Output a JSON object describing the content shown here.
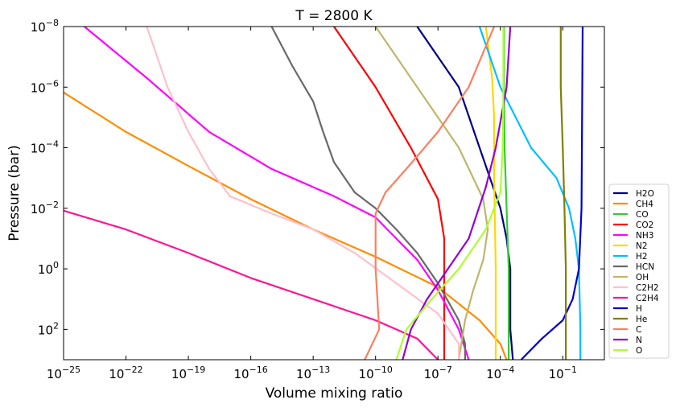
{
  "chart_data": {
    "type": "line",
    "title": "T = 2800 K",
    "xlabel": "Volume mixing ratio",
    "ylabel": "Pressure (bar)",
    "x_scale": "log",
    "y_scale": "log",
    "y_inverted": true,
    "xlim": [
      1e-25,
      10
    ],
    "ylim": [
      1000,
      1e-08
    ],
    "x_ticks": [
      {
        "value": 1e-25,
        "base": "10",
        "exp": "−25"
      },
      {
        "value": 1e-22,
        "base": "10",
        "exp": "−22"
      },
      {
        "value": 1e-19,
        "base": "10",
        "exp": "−19"
      },
      {
        "value": 1e-16,
        "base": "10",
        "exp": "−16"
      },
      {
        "value": 1e-13,
        "base": "10",
        "exp": "−13"
      },
      {
        "value": 1e-10,
        "base": "10",
        "exp": "−10"
      },
      {
        "value": 1e-07,
        "base": "10",
        "exp": "−7"
      },
      {
        "value": 0.0001,
        "base": "10",
        "exp": "−4"
      },
      {
        "value": 0.1,
        "base": "10",
        "exp": "−1"
      }
    ],
    "y_ticks": [
      {
        "value": 1e-08,
        "base": "10",
        "exp": "−8"
      },
      {
        "value": 1e-06,
        "base": "10",
        "exp": "−6"
      },
      {
        "value": 0.0001,
        "base": "10",
        "exp": "−4"
      },
      {
        "value": 0.01,
        "base": "10",
        "exp": "−2"
      },
      {
        "value": 1,
        "base": "10",
        "exp": "0"
      },
      {
        "value": 100,
        "base": "10",
        "exp": "2"
      }
    ],
    "legend_position": "lower-right-outside",
    "grid": false,
    "series": [
      {
        "name": "H2O",
        "color": "#000080",
        "points": [
          [
            1e-08,
            1e-08
          ],
          [
            1e-06,
            1e-06
          ],
          [
            1e-05,
            0.0001
          ],
          [
            0.0001,
            0.01
          ],
          [
            0.0002,
            0.1
          ],
          [
            0.0003,
            1
          ],
          [
            0.0003,
            100
          ],
          [
            0.0004,
            1000
          ]
        ]
      },
      {
        "name": "CH4",
        "color": "#ff8c00",
        "points": [
          [
            1e-25,
            1.5e-06
          ],
          [
            1e-22,
            3e-05
          ],
          [
            1e-19,
            0.0004
          ],
          [
            1e-16,
            0.005
          ],
          [
            1e-13,
            0.05
          ],
          [
            1e-10,
            0.4
          ],
          [
            1e-07,
            4
          ],
          [
            1e-05,
            50
          ],
          [
            0.0001,
            300
          ],
          [
            0.0002,
            1000
          ]
        ]
      },
      {
        "name": "CO",
        "color": "#32cd32",
        "points": [
          [
            0.00015,
            1e-08
          ],
          [
            0.00015,
            1e-06
          ],
          [
            0.00016,
            0.0001
          ],
          [
            0.0002,
            0.01
          ],
          [
            0.00025,
            1
          ],
          [
            0.00025,
            1000
          ]
        ]
      },
      {
        "name": "CO2",
        "color": "#ff0000",
        "points": [
          [
            1e-12,
            1e-08
          ],
          [
            1e-10,
            1e-06
          ],
          [
            5e-09,
            0.0001
          ],
          [
            1e-07,
            0.005
          ],
          [
            2e-07,
            0.1
          ],
          [
            2e-07,
            1000
          ]
        ]
      },
      {
        "name": "NH3",
        "color": "#ff00ff",
        "points": [
          [
            1e-24,
            1e-08
          ],
          [
            1e-21,
            5e-07
          ],
          [
            1e-18,
            3e-05
          ],
          [
            1e-15,
            0.0005
          ],
          [
            1e-12,
            0.004
          ],
          [
            1e-10,
            0.02
          ],
          [
            1e-09,
            0.1
          ],
          [
            1e-08,
            0.5
          ],
          [
            1e-07,
            5
          ],
          [
            1e-06,
            100
          ],
          [
            3e-06,
            1000
          ]
        ]
      },
      {
        "name": "N2",
        "color": "#ffd700",
        "points": [
          [
            2e-05,
            1e-08
          ],
          [
            4e-05,
            5e-07
          ],
          [
            5e-05,
            1e-05
          ],
          [
            5e-05,
            0.001
          ],
          [
            6e-05,
            1
          ],
          [
            6e-05,
            1000
          ]
        ]
      },
      {
        "name": "H2",
        "color": "#00bfff",
        "points": [
          [
            1e-05,
            1e-08
          ],
          [
            0.0001,
            1e-06
          ],
          [
            0.003,
            0.0001
          ],
          [
            0.05,
            0.001
          ],
          [
            0.2,
            0.01
          ],
          [
            0.4,
            0.1
          ],
          [
            0.6,
            1
          ],
          [
            0.7,
            100
          ],
          [
            0.7,
            1000
          ]
        ]
      },
      {
        "name": "HCN",
        "color": "#696969",
        "points": [
          [
            1e-15,
            1e-08
          ],
          [
            1e-14,
            2e-07
          ],
          [
            1e-13,
            3e-06
          ],
          [
            3e-13,
            3e-05
          ],
          [
            1e-12,
            0.0003
          ],
          [
            1e-11,
            0.003
          ],
          [
            1e-10,
            0.01
          ],
          [
            1e-09,
            0.05
          ],
          [
            1e-08,
            0.3
          ],
          [
            1e-07,
            3
          ],
          [
            1e-06,
            50
          ],
          [
            2e-06,
            300
          ],
          [
            2e-06,
            1000
          ]
        ]
      },
      {
        "name": "OH",
        "color": "#bdb76b",
        "points": [
          [
            1e-10,
            1e-08
          ],
          [
            1e-08,
            1e-06
          ],
          [
            1e-06,
            0.0001
          ],
          [
            1.5e-05,
            0.005
          ],
          [
            2.5e-05,
            0.05
          ],
          [
            1.5e-05,
            0.5
          ],
          [
            5e-06,
            5
          ],
          [
            2e-06,
            50
          ],
          [
            1e-06,
            1000
          ]
        ]
      },
      {
        "name": "C2H2",
        "color": "#ffc0cb",
        "points": [
          [
            1e-21,
            1e-08
          ],
          [
            1e-20,
            1e-06
          ],
          [
            1e-19,
            3e-05
          ],
          [
            1e-18,
            0.0005
          ],
          [
            1e-17,
            0.004
          ],
          [
            1e-15,
            0.015
          ],
          [
            1e-13,
            0.05
          ],
          [
            1e-11,
            0.3
          ],
          [
            1e-09,
            3
          ],
          [
            1e-07,
            30
          ],
          [
            1e-06,
            300
          ],
          [
            1e-06,
            1000
          ]
        ]
      },
      {
        "name": "C2H4",
        "color": "#ff1493",
        "points": [
          [
            1e-25,
            0.012
          ],
          [
            1e-22,
            0.05
          ],
          [
            1e-19,
            0.3
          ],
          [
            1e-16,
            2
          ],
          [
            1e-13,
            10
          ],
          [
            1e-10,
            50
          ],
          [
            1e-08,
            200
          ],
          [
            1e-07,
            1000
          ]
        ]
      },
      {
        "name": "H",
        "color": "#0000cd",
        "points": [
          [
            0.001,
            1000
          ],
          [
            0.01,
            200
          ],
          [
            0.1,
            50
          ],
          [
            0.3,
            10
          ],
          [
            0.6,
            1
          ],
          [
            0.8,
            0.01
          ],
          [
            0.9,
            1e-08
          ]
        ]
      },
      {
        "name": "He",
        "color": "#808000",
        "points": [
          [
            0.08,
            1e-08
          ],
          [
            0.08,
            1e-06
          ],
          [
            0.1,
            0.0001
          ],
          [
            0.12,
            0.01
          ],
          [
            0.14,
            1
          ],
          [
            0.14,
            1000
          ]
        ]
      },
      {
        "name": "C",
        "color": "#fa8060",
        "points": [
          [
            5e-05,
            1e-08
          ],
          [
            3e-06,
            1e-06
          ],
          [
            1e-07,
            3e-05
          ],
          [
            3e-09,
            0.0005
          ],
          [
            3e-10,
            0.003
          ],
          [
            1e-10,
            0.015
          ],
          [
            1e-10,
            1
          ],
          [
            1.5e-10,
            100
          ],
          [
            3e-11,
            1000
          ]
        ]
      },
      {
        "name": "N",
        "color": "#9400d3",
        "points": [
          [
            0.0003,
            1e-08
          ],
          [
            0.0002,
            1e-06
          ],
          [
            6e-05,
            0.0001
          ],
          [
            2e-05,
            0.002
          ],
          [
            3e-06,
            0.1
          ],
          [
            3e-07,
            1
          ],
          [
            3e-08,
            10
          ],
          [
            5e-09,
            100
          ],
          [
            2e-09,
            1000
          ]
        ]
      },
      {
        "name": "O",
        "color": "#adff2f",
        "points": [
          [
            0.00014,
            1e-08
          ],
          [
            0.00014,
            1e-06
          ],
          [
            0.00013,
            0.0001
          ],
          [
            0.0001,
            0.003
          ],
          [
            2e-05,
            0.05
          ],
          [
            1e-06,
            1
          ],
          [
            5e-08,
            10
          ],
          [
            3e-09,
            100
          ],
          [
            1e-09,
            1000
          ]
        ]
      }
    ]
  }
}
